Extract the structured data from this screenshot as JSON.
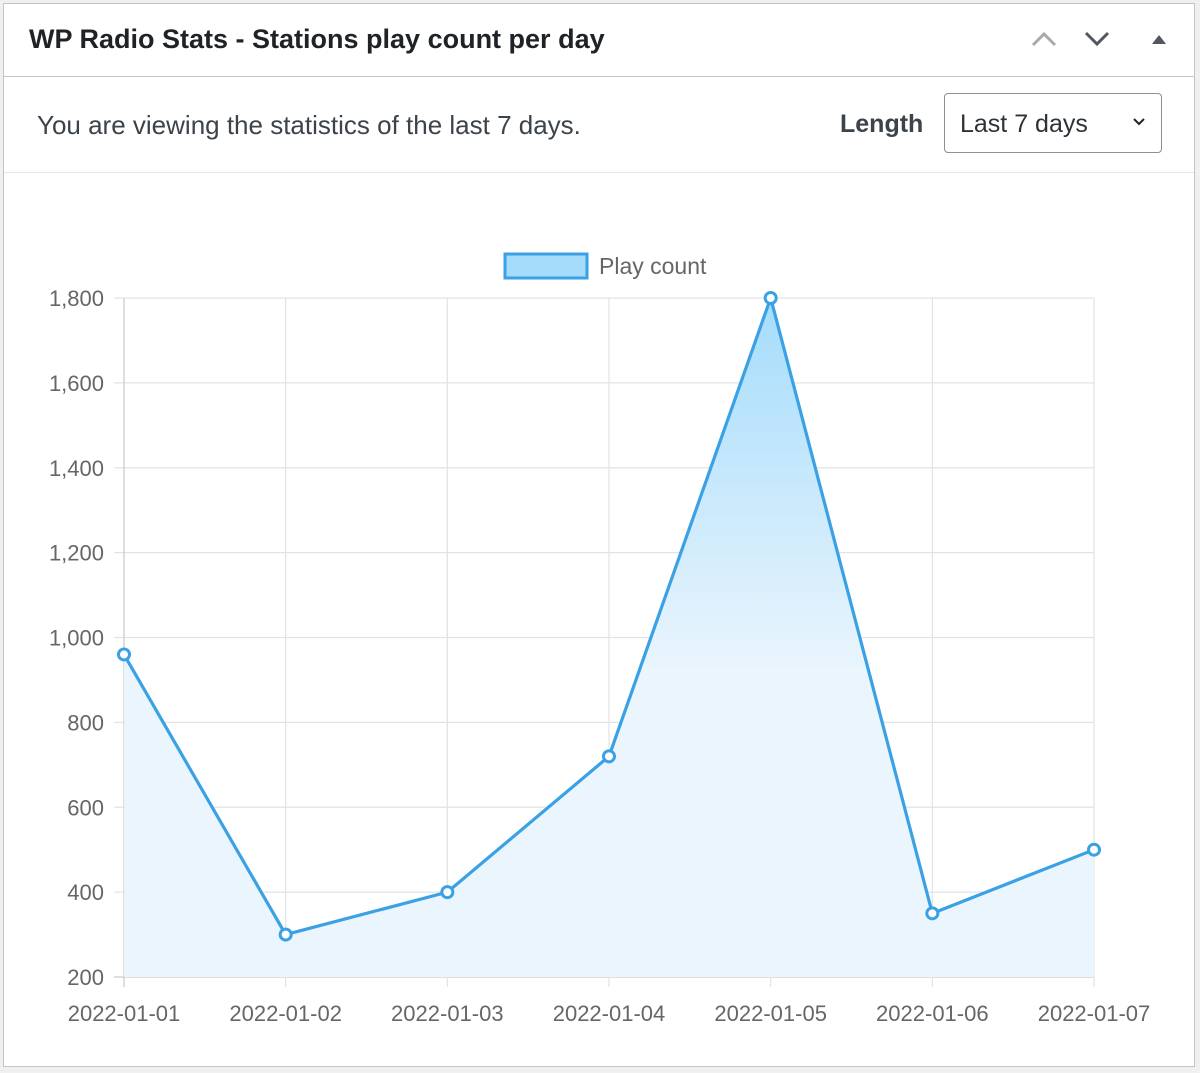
{
  "header": {
    "title": "WP Radio Stats - Stations play count per day"
  },
  "toolbar": {
    "info": "You are viewing the statistics of the last 7 days.",
    "length_label": "Length",
    "length_value": "Last 7 days"
  },
  "icons": {
    "move_up": "chevron-up-icon",
    "move_down": "chevron-down-icon",
    "toggle": "triangle-up-icon",
    "select_arrow": "chevron-down-icon"
  },
  "colors": {
    "line": "#3aa1e4",
    "fill_top": "#a5dcfb",
    "fill_bottom": "#eaf5fd",
    "grid": "#e3e3e3"
  },
  "chart_data": {
    "type": "line",
    "categories": [
      "2022-01-01",
      "2022-01-02",
      "2022-01-03",
      "2022-01-04",
      "2022-01-05",
      "2022-01-06",
      "2022-01-07"
    ],
    "series": [
      {
        "name": "Play count",
        "values": [
          960,
          300,
          400,
          720,
          1800,
          350,
          500
        ]
      }
    ],
    "ylim": [
      200,
      1800
    ],
    "yticks": [
      200,
      400,
      600,
      800,
      1000,
      1200,
      1400,
      1600,
      1800
    ],
    "ytick_labels": [
      "200",
      "400",
      "600",
      "800",
      "1,000",
      "1,200",
      "1,400",
      "1,600",
      "1,800"
    ],
    "fill": true,
    "grid": true,
    "legend": "top-center"
  }
}
